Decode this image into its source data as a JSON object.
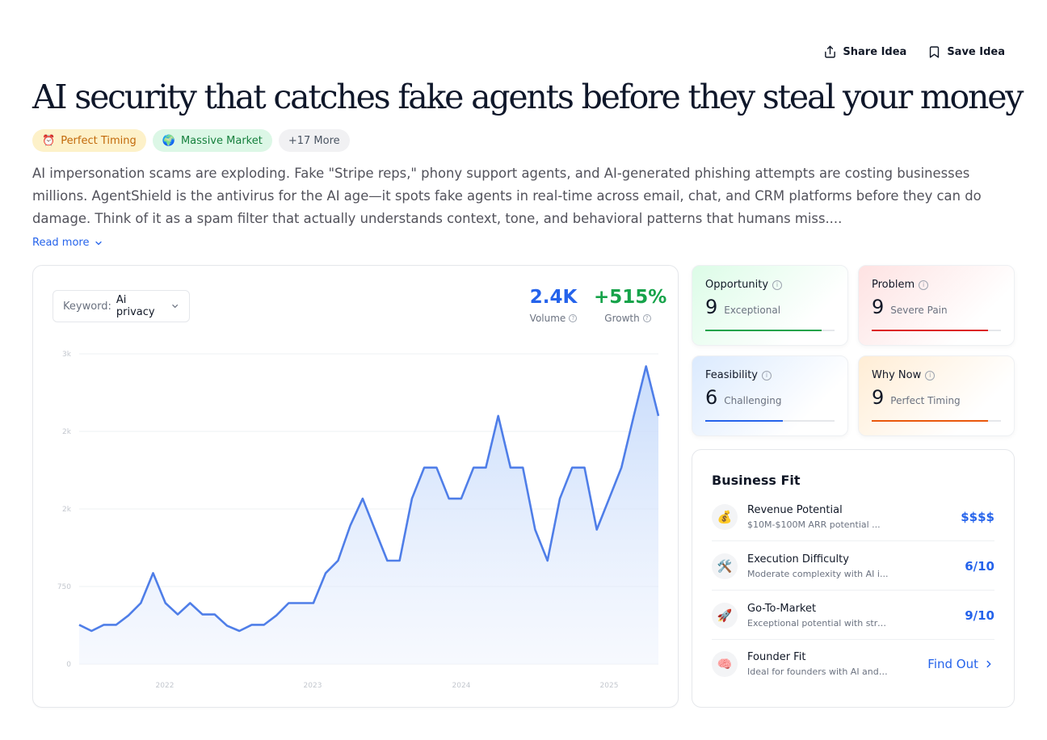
{
  "actions": {
    "share_label": "Share Idea",
    "save_label": "Save Idea"
  },
  "title": "AI security that catches fake agents before they steal your money",
  "tags": [
    {
      "emoji": "⏰",
      "label": "Perfect Timing"
    },
    {
      "emoji": "🌍",
      "label": "Massive Market"
    },
    {
      "label": "+17 More"
    }
  ],
  "description": "AI impersonation scams are exploding. Fake \"Stripe reps,\" phony support agents, and AI-generated phishing attempts are costing businesses millions. AgentShield is the antivirus for the AI age—it spots fake agents in real-time across email, chat, and CRM platforms before they can do damage. Think of it as a spam filter that actually understands context, tone, and behavioral patterns that humans miss....",
  "read_more": "Read more",
  "keyword": {
    "label": "Keyword:",
    "value": "Ai privacy"
  },
  "stats": {
    "volume": {
      "value": "2.4K",
      "label": "Volume"
    },
    "growth": {
      "value": "+515%",
      "label": "Growth"
    }
  },
  "chart_data": {
    "type": "area",
    "y_tick_labels": [
      "3k",
      "2k",
      "2k",
      "750",
      "0"
    ],
    "x_tick_labels": [
      "2022",
      "2023",
      "2024",
      "2025"
    ],
    "ylim": [
      0,
      3000
    ],
    "grid": true,
    "color": "#4f7ee8",
    "series": [
      {
        "values": [
          380,
          320,
          380,
          380,
          470,
          590,
          880,
          590,
          480,
          590,
          480,
          480,
          370,
          320,
          380,
          380,
          470,
          590,
          590,
          590,
          880,
          1000,
          1340,
          1600,
          1300,
          1000,
          1000,
          1600,
          1900,
          1900,
          1600,
          1600,
          1900,
          1900,
          2400,
          1900,
          1900,
          1300,
          1000,
          1600,
          1900,
          1900,
          1300,
          1600,
          1900,
          2400,
          2880,
          2400
        ]
      }
    ]
  },
  "scores": {
    "opportunity": {
      "label": "Opportunity",
      "value": "9",
      "word": "Exceptional",
      "fraction": 0.9,
      "color": "#16a34a"
    },
    "problem": {
      "label": "Problem",
      "value": "9",
      "word": "Severe Pain",
      "fraction": 0.9,
      "color": "#dc2626"
    },
    "feasibility": {
      "label": "Feasibility",
      "value": "6",
      "word": "Challenging",
      "fraction": 0.6,
      "color": "#2563eb"
    },
    "why_now": {
      "label": "Why Now",
      "value": "9",
      "word": "Perfect Timing",
      "fraction": 0.9,
      "color": "#ea580c"
    }
  },
  "business_fit": {
    "title": "Business Fit",
    "rows": [
      {
        "icon": "💰",
        "name": "Revenue Potential",
        "sub": "$10M-$100M ARR potential ...",
        "value": "$$$$"
      },
      {
        "icon": "🛠️",
        "name": "Execution Difficulty",
        "sub": "Moderate complexity with AI i...",
        "value": "6/10"
      },
      {
        "icon": "🚀",
        "name": "Go-To-Market",
        "sub": "Exceptional potential with stro...",
        "value": "9/10"
      },
      {
        "icon": "🧠",
        "name": "Founder Fit",
        "sub": "Ideal for founders with AI and ...",
        "value": "Find Out"
      }
    ]
  }
}
